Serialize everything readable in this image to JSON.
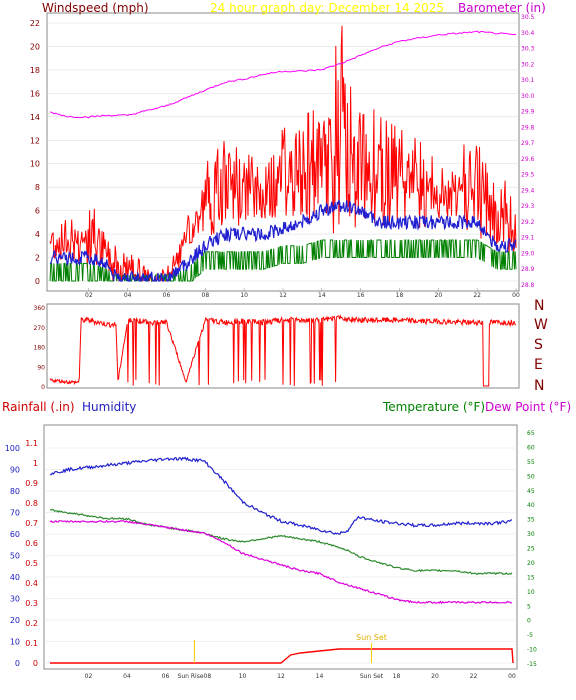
{
  "header": {
    "windspeed_title": "Windspeed (mph)",
    "graph_title": "24 hour graph day:  December 14 2025",
    "barometer_title": "Barometer (in)"
  },
  "compass_labels": [
    "N",
    "W",
    "S",
    "E",
    "N"
  ],
  "lower_header": {
    "rainfall_title": "Rainfall (.in)",
    "humidity_title": "Humidity",
    "temperature_title": "Temperature (°F)",
    "dewpoint_title": "Dew Point (°F)"
  },
  "sun": {
    "rise_label": "Sun Rise08",
    "set_label": "Sun Set",
    "set_label_axis": "Sun Set"
  },
  "colors": {
    "wind": "#ff0000",
    "wind_avg": "#2020d0",
    "wind_low": "#008000",
    "barometer": "#ff00ff",
    "title_wind": "#800000",
    "title_date": "#ffff00",
    "direction": "#ff0000",
    "humidity": "#2020d0",
    "temperature": "#2e8b2e",
    "dewpoint": "#dd00dd",
    "rain": "#ff0000",
    "sun_marker": "#ffcc00",
    "axis_right_lower": "#008000"
  },
  "chart_data": [
    {
      "type": "line",
      "name": "wind-barometer",
      "x_ticks": [
        "02",
        "04",
        "06",
        "08",
        "10",
        "12",
        "14",
        "16",
        "18",
        "20",
        "22",
        "00"
      ],
      "y_left_ticks": [
        0,
        2,
        4,
        6,
        8,
        10,
        12,
        14,
        16,
        18,
        20,
        22
      ],
      "y_left_label": "Windspeed (mph)",
      "ylim_left": [
        0,
        23
      ],
      "y_right_ticks": [
        28.8,
        28.9,
        29.0,
        29.1,
        29.2,
        29.3,
        29.4,
        29.5,
        29.6,
        29.7,
        29.8,
        29.9,
        30.0,
        30.1,
        30.2,
        30.3,
        30.4,
        30.5
      ],
      "y_right_label": "Barometer (in)",
      "ylim_right": [
        28.75,
        30.52
      ],
      "x_hours": [
        0,
        1,
        2,
        3,
        4,
        5,
        6,
        7,
        8,
        9,
        10,
        11,
        12,
        13,
        14,
        15,
        16,
        17,
        18,
        20,
        22,
        23,
        24
      ],
      "series": [
        {
          "name": "Barometer (in)",
          "axis": "right",
          "values": [
            29.89,
            29.86,
            29.86,
            29.87,
            29.87,
            29.9,
            29.93,
            29.98,
            30.03,
            30.08,
            30.1,
            30.13,
            30.15,
            30.15,
            30.16,
            30.2,
            30.25,
            30.3,
            30.34,
            30.38,
            30.4,
            30.39,
            30.38
          ]
        }
      ],
      "wind_gust_profile": {
        "hours": [
          0,
          1,
          2,
          3,
          3.2,
          4,
          5,
          6,
          7,
          8,
          9,
          10,
          11,
          12,
          13,
          14,
          15,
          16,
          17,
          18,
          19,
          20,
          21,
          22,
          23,
          24
        ],
        "max": [
          6,
          5,
          7,
          4,
          3,
          3,
          1,
          1,
          5,
          10,
          12,
          11,
          10,
          13,
          14,
          15,
          22,
          16,
          14,
          13,
          12,
          10,
          11,
          13,
          9,
          8
        ],
        "typical": [
          3,
          3,
          3,
          2,
          1,
          1,
          0,
          0,
          3,
          6,
          7,
          7,
          7,
          8,
          8,
          8,
          10,
          9,
          8,
          8,
          7,
          7,
          7,
          7,
          5,
          4
        ]
      },
      "wind_avg_profile": {
        "hours": [
          0,
          1,
          2,
          3,
          3.2,
          4,
          5,
          6,
          7,
          8,
          9,
          10,
          11,
          12,
          13,
          14,
          15,
          16,
          17,
          18,
          19,
          20,
          21,
          22,
          23,
          24
        ],
        "values": [
          2,
          2,
          2,
          1.5,
          0.5,
          0.3,
          0.2,
          0.2,
          1.5,
          3,
          4,
          4,
          4,
          4.5,
          5,
          6,
          6.5,
          6,
          5,
          5,
          5,
          5,
          5,
          5,
          3,
          3
        ]
      },
      "wind_low_profile": {
        "hours": [
          0,
          1,
          2,
          3,
          3.2,
          4,
          5,
          6,
          7,
          8,
          9,
          10,
          11,
          12,
          13,
          14,
          15,
          16,
          17,
          18,
          19,
          20,
          21,
          22,
          23,
          24
        ],
        "values": [
          1,
          1,
          1,
          0.5,
          0,
          0,
          0,
          0,
          0.5,
          2,
          2,
          2,
          2,
          2.5,
          2.5,
          3,
          3,
          3,
          3,
          3,
          3,
          3,
          3,
          3,
          2,
          2
        ]
      }
    },
    {
      "type": "line",
      "name": "wind-direction",
      "x_hours": [
        0,
        1,
        1.5,
        1.6,
        2,
        3,
        3.4,
        3.5,
        4,
        4.5,
        5,
        6,
        7,
        8,
        9,
        10,
        11,
        12,
        13,
        14,
        15,
        16,
        17,
        18,
        19,
        20,
        21,
        22,
        23,
        24
      ],
      "series": [
        {
          "name": "Direction",
          "values": [
            20,
            10,
            10,
            300,
            300,
            280,
            280,
            10,
            300,
            300,
            290,
            290,
            10,
            300,
            290,
            295,
            290,
            300,
            300,
            300,
            310,
            300,
            300,
            300,
            295,
            295,
            290,
            290,
            290,
            290
          ]
        }
      ],
      "y_ticks": [
        0,
        90,
        180,
        270,
        360
      ],
      "ylim": [
        0,
        360
      ]
    },
    {
      "type": "line",
      "name": "rain-humidity-temp-dew",
      "x_ticks": [
        "02",
        "04",
        "06",
        "08",
        "10",
        "12",
        "14",
        "16",
        "18",
        "20",
        "22",
        "00"
      ],
      "y_left_ticks": [
        0,
        10,
        20,
        30,
        40,
        50,
        60,
        70,
        80,
        90,
        100
      ],
      "y_left_label": "Humidity",
      "ylim_left": [
        0,
        108
      ],
      "y_right_ticks": [
        -15,
        -10,
        -5,
        0,
        5,
        10,
        15,
        20,
        25,
        30,
        35,
        40,
        45,
        50,
        55,
        60,
        65
      ],
      "y_right_label": "Temperature (°F)",
      "ylim_right": [
        -18,
        67
      ],
      "rain_ticks": [
        0,
        0.1,
        0.2,
        0.3,
        0.4,
        0.5,
        0.6,
        0.7,
        0.8,
        0.9,
        1,
        1.1
      ],
      "rain_label": "Rainfall (.in)",
      "x_hours": [
        0,
        1,
        2,
        3,
        4,
        5,
        6,
        7,
        8,
        9,
        10,
        11,
        12,
        13,
        14,
        15,
        15.5,
        16,
        17,
        18,
        19,
        20,
        21,
        22,
        23,
        24
      ],
      "series": [
        {
          "name": "Humidity",
          "axis": "left",
          "values": [
            88,
            90,
            91,
            92,
            93,
            94,
            95,
            95,
            94,
            85,
            75,
            70,
            66,
            64,
            62,
            60,
            62,
            68,
            66,
            65,
            64,
            64,
            65,
            65,
            65,
            66
          ]
        },
        {
          "name": "Temperature (°F)",
          "axis": "right",
          "values": [
            38,
            37,
            36,
            35,
            35,
            33,
            32,
            31,
            30,
            28,
            27,
            28,
            29,
            28,
            27,
            25,
            24,
            22,
            20,
            18,
            17,
            17,
            17,
            16,
            16,
            16
          ]
        },
        {
          "name": "Dew Point (°F)",
          "axis": "right",
          "values": [
            34,
            34,
            34,
            34,
            34,
            33,
            32,
            31,
            30,
            27,
            23,
            21,
            19,
            17,
            16,
            13,
            12,
            11,
            9,
            7,
            6,
            6,
            6,
            6,
            6,
            6
          ]
        },
        {
          "name": "Rainfall (.in)",
          "axis": "rain",
          "hours": [
            0,
            12,
            12.5,
            13,
            14,
            15,
            16,
            17,
            18,
            19,
            20,
            21,
            22,
            23,
            24,
            24.05
          ],
          "values": [
            0,
            0,
            0.04,
            0.05,
            0.06,
            0.07,
            0.07,
            0.07,
            0.07,
            0.07,
            0.07,
            0.07,
            0.07,
            0.07,
            0.07,
            0
          ]
        }
      ],
      "sunrise_hour": 7.5,
      "sunset_hour": 16.7
    }
  ]
}
